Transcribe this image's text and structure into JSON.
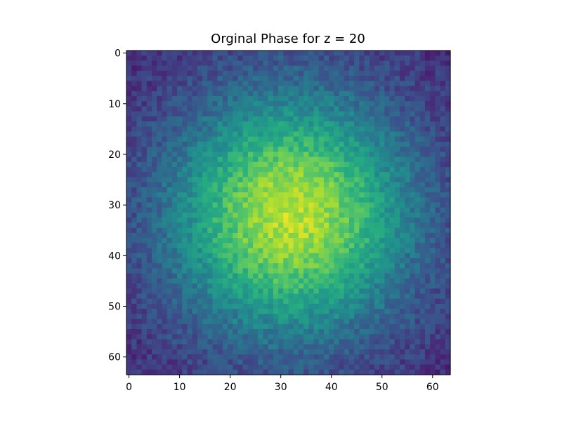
{
  "chart_data": {
    "type": "heatmap",
    "title": "Orginal Phase for z = 20",
    "xlabel": "",
    "ylabel": "",
    "grid_size": [
      64,
      64
    ],
    "xlim": [
      -0.5,
      63.5
    ],
    "ylim": [
      63.5,
      -0.5
    ],
    "x_ticks": [
      0,
      10,
      20,
      30,
      40,
      50,
      60
    ],
    "y_ticks": [
      0,
      10,
      20,
      30,
      40,
      50,
      60
    ],
    "y_axis_inverted": true,
    "colormap": "viridis",
    "grid": false,
    "colorbar": false,
    "description_of_values": "Roughly Gaussian blob of high values centered near (x=32, y=32) with per-pixel noise; lowest values in the corners",
    "center": [
      32,
      32
    ],
    "approx_value_range": [
      0.0,
      1.0
    ]
  }
}
